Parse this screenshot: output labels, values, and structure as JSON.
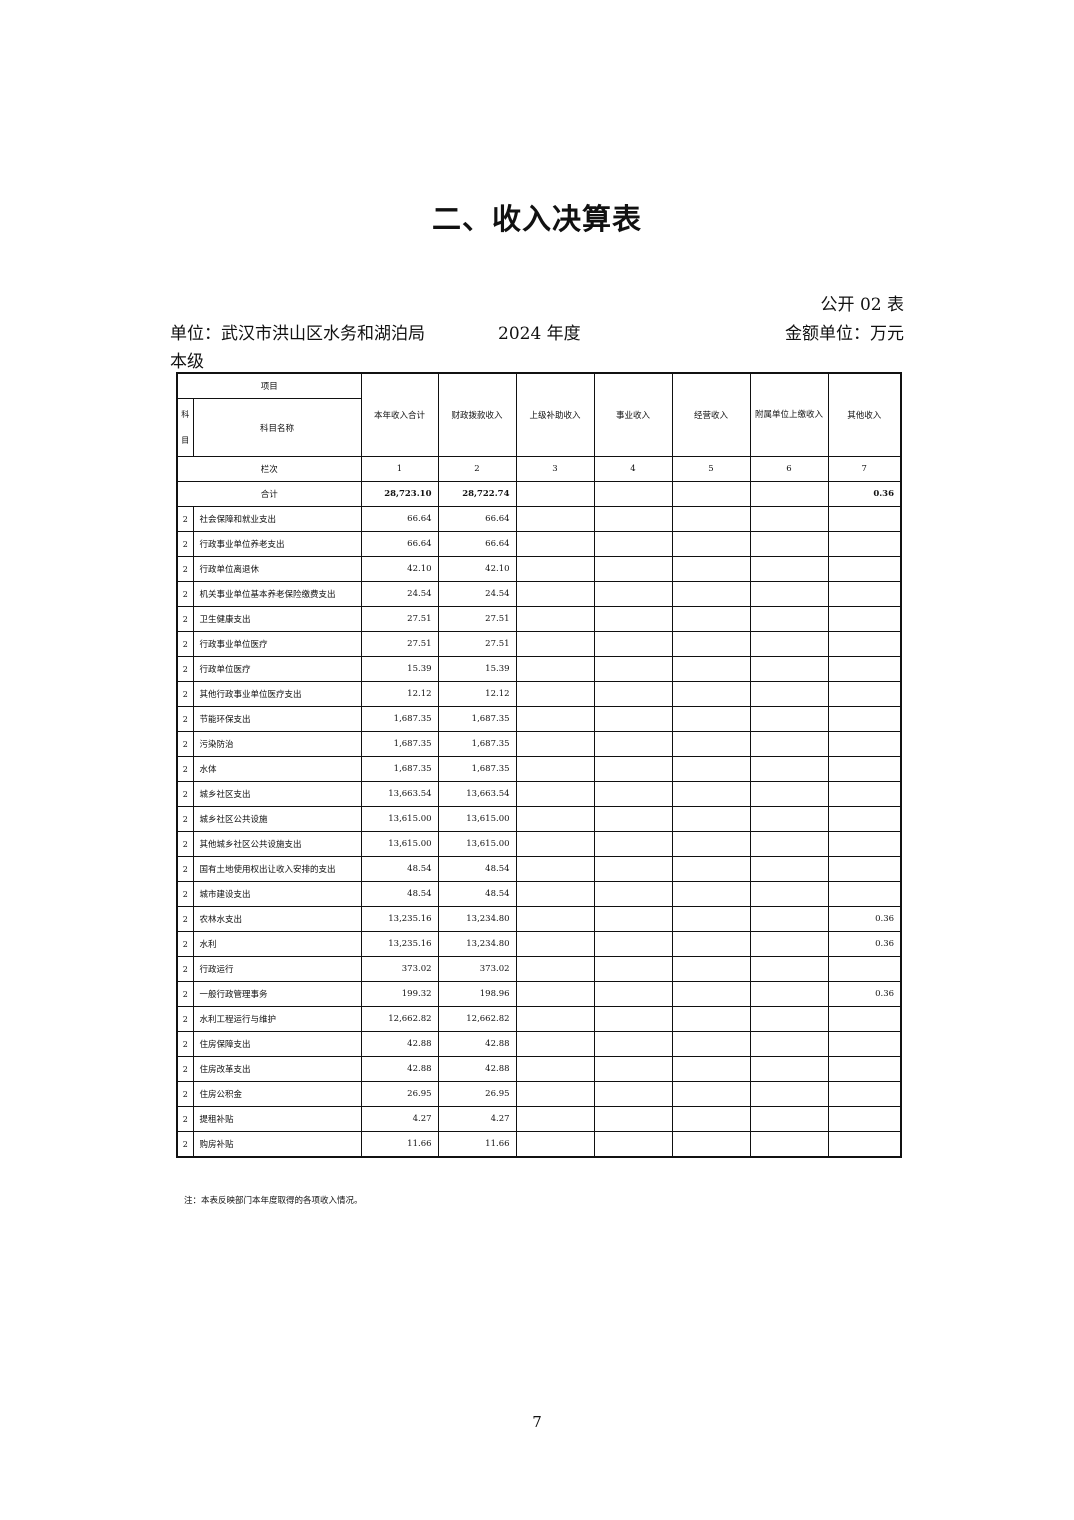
{
  "title": "二、收入决算表",
  "form_no": "公开 02 表",
  "unit": "单位：武汉市洪山区水务和湖泊局",
  "year": "2024 年度",
  "money_unit": "金额单位：万元",
  "level": "本级",
  "table": {
    "header_item": "项目",
    "header_code": "科目",
    "header_name": "科目名称",
    "columns": [
      "本年收入合计",
      "财政拨款收入",
      "上级补助收入",
      "事业收入",
      "经营收入",
      "附属单位上缴收入",
      "其他收入"
    ],
    "row_index_label": "栏次",
    "row_index": [
      "1",
      "2",
      "3",
      "4",
      "5",
      "6",
      "7"
    ],
    "total": {
      "label": "合计",
      "values": [
        "28,723.10",
        "28,722.74",
        "",
        "",
        "",
        "",
        "0.36"
      ]
    },
    "rows": [
      {
        "code": "2",
        "name": "社会保障和就业支出",
        "values": [
          "66.64",
          "66.64",
          "",
          "",
          "",
          "",
          ""
        ]
      },
      {
        "code": "2",
        "name": "行政事业单位养老支出",
        "values": [
          "66.64",
          "66.64",
          "",
          "",
          "",
          "",
          ""
        ]
      },
      {
        "code": "2",
        "name": "行政单位离退休",
        "values": [
          "42.10",
          "42.10",
          "",
          "",
          "",
          "",
          ""
        ]
      },
      {
        "code": "2",
        "name": "机关事业单位基本养老保险缴费支出",
        "values": [
          "24.54",
          "24.54",
          "",
          "",
          "",
          "",
          ""
        ]
      },
      {
        "code": "2",
        "name": "卫生健康支出",
        "values": [
          "27.51",
          "27.51",
          "",
          "",
          "",
          "",
          ""
        ]
      },
      {
        "code": "2",
        "name": "行政事业单位医疗",
        "values": [
          "27.51",
          "27.51",
          "",
          "",
          "",
          "",
          ""
        ]
      },
      {
        "code": "2",
        "name": "行政单位医疗",
        "values": [
          "15.39",
          "15.39",
          "",
          "",
          "",
          "",
          ""
        ]
      },
      {
        "code": "2",
        "name": "其他行政事业单位医疗支出",
        "values": [
          "12.12",
          "12.12",
          "",
          "",
          "",
          "",
          ""
        ]
      },
      {
        "code": "2",
        "name": "节能环保支出",
        "values": [
          "1,687.35",
          "1,687.35",
          "",
          "",
          "",
          "",
          ""
        ]
      },
      {
        "code": "2",
        "name": "污染防治",
        "values": [
          "1,687.35",
          "1,687.35",
          "",
          "",
          "",
          "",
          ""
        ]
      },
      {
        "code": "2",
        "name": "水体",
        "values": [
          "1,687.35",
          "1,687.35",
          "",
          "",
          "",
          "",
          ""
        ]
      },
      {
        "code": "2",
        "name": "城乡社区支出",
        "values": [
          "13,663.54",
          "13,663.54",
          "",
          "",
          "",
          "",
          ""
        ]
      },
      {
        "code": "2",
        "name": "城乡社区公共设施",
        "values": [
          "13,615.00",
          "13,615.00",
          "",
          "",
          "",
          "",
          ""
        ]
      },
      {
        "code": "2",
        "name": "其他城乡社区公共设施支出",
        "values": [
          "13,615.00",
          "13,615.00",
          "",
          "",
          "",
          "",
          ""
        ]
      },
      {
        "code": "2",
        "name": "国有土地使用权出让收入安排的支出",
        "values": [
          "48.54",
          "48.54",
          "",
          "",
          "",
          "",
          ""
        ]
      },
      {
        "code": "2",
        "name": "城市建设支出",
        "values": [
          "48.54",
          "48.54",
          "",
          "",
          "",
          "",
          ""
        ]
      },
      {
        "code": "2",
        "name": "农林水支出",
        "values": [
          "13,235.16",
          "13,234.80",
          "",
          "",
          "",
          "",
          "0.36"
        ]
      },
      {
        "code": "2",
        "name": "水利",
        "values": [
          "13,235.16",
          "13,234.80",
          "",
          "",
          "",
          "",
          "0.36"
        ]
      },
      {
        "code": "2",
        "name": "行政运行",
        "values": [
          "373.02",
          "373.02",
          "",
          "",
          "",
          "",
          ""
        ]
      },
      {
        "code": "2",
        "name": "一般行政管理事务",
        "values": [
          "199.32",
          "198.96",
          "",
          "",
          "",
          "",
          "0.36"
        ]
      },
      {
        "code": "2",
        "name": "水利工程运行与维护",
        "values": [
          "12,662.82",
          "12,662.82",
          "",
          "",
          "",
          "",
          ""
        ]
      },
      {
        "code": "2",
        "name": "住房保障支出",
        "values": [
          "42.88",
          "42.88",
          "",
          "",
          "",
          "",
          ""
        ]
      },
      {
        "code": "2",
        "name": "住房改革支出",
        "values": [
          "42.88",
          "42.88",
          "",
          "",
          "",
          "",
          ""
        ]
      },
      {
        "code": "2",
        "name": "住房公积金",
        "values": [
          "26.95",
          "26.95",
          "",
          "",
          "",
          "",
          ""
        ]
      },
      {
        "code": "2",
        "name": "提租补贴",
        "values": [
          "4.27",
          "4.27",
          "",
          "",
          "",
          "",
          ""
        ]
      },
      {
        "code": "2",
        "name": "购房补贴",
        "values": [
          "11.66",
          "11.66",
          "",
          "",
          "",
          "",
          ""
        ]
      }
    ]
  },
  "note": "注：本表反映部门本年度取得的各项收入情况。",
  "page_number": "7"
}
